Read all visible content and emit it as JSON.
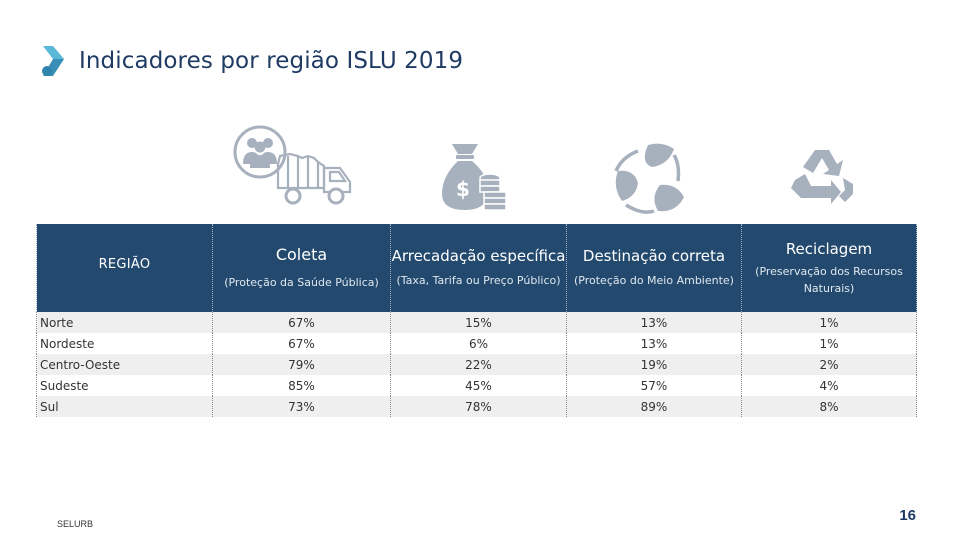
{
  "header": {
    "title": "Indicadores por região ISLU 2019"
  },
  "icons": {
    "logo": "chevron-logo-icon",
    "coleta": "garbage-truck-people-icon",
    "arrecadacao": "money-bag-coins-icon",
    "destinacao": "leaves-cycle-icon",
    "reciclagem": "recycle-icon"
  },
  "colors": {
    "header_bg": "#234a6e",
    "logo_light": "#5ab8d8",
    "logo_dark": "#3a8fb8",
    "icon_gray": "#a7b0bd"
  },
  "table": {
    "headers": {
      "region": "REGIÃO",
      "coleta": {
        "title": "Coleta",
        "subtitle": "(Proteção da Saúde Pública)"
      },
      "arrecadacao": {
        "title": "Arrecadação específica",
        "subtitle": "(Taxa, Tarifa ou Preço Público)"
      },
      "destinacao": {
        "title": "Destinação correta",
        "subtitle": "(Proteção do Meio Ambiente)"
      },
      "reciclagem": {
        "title": "Reciclagem",
        "subtitle": "(Preservação dos Recursos Naturais)"
      }
    },
    "rows": [
      {
        "region": "Norte",
        "coleta": "67%",
        "arrecadacao": "15%",
        "destinacao": "13%",
        "reciclagem": "1%"
      },
      {
        "region": "Nordeste",
        "coleta": "67%",
        "arrecadacao": "6%",
        "destinacao": "13%",
        "reciclagem": "1%"
      },
      {
        "region": "Centro-Oeste",
        "coleta": "79%",
        "arrecadacao": "22%",
        "destinacao": "19%",
        "reciclagem": "2%"
      },
      {
        "region": "Sudeste",
        "coleta": "85%",
        "arrecadacao": "45%",
        "destinacao": "57%",
        "reciclagem": "4%"
      },
      {
        "region": "Sul",
        "coleta": "73%",
        "arrecadacao": "78%",
        "destinacao": "89%",
        "reciclagem": "8%"
      }
    ]
  },
  "footer": {
    "org": "SELURB",
    "page_number": "16"
  }
}
